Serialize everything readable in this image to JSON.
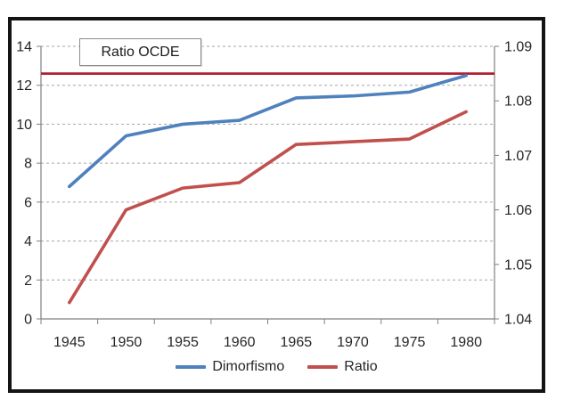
{
  "annotation": {
    "label": "Ratio OCDE"
  },
  "chart_data": {
    "type": "line",
    "title": "",
    "x_labels": [
      "1945",
      "1950",
      "1955",
      "1960",
      "1965",
      "1970",
      "1975",
      "1980"
    ],
    "left_axis": {
      "min": 0,
      "max": 14,
      "step": 2,
      "tick_labels": [
        "0",
        "2",
        "4",
        "6",
        "8",
        "10",
        "12",
        "14"
      ]
    },
    "right_axis": {
      "min": 1.04,
      "max": 1.09,
      "step": 0.01,
      "tick_labels": [
        "1.04",
        "1.05",
        "1.06",
        "1.07",
        "1.08",
        "1.09"
      ]
    },
    "series": [
      {
        "name": "Dimorfismo",
        "axis": "left",
        "color": "#4F81BD",
        "values": [
          6.8,
          9.4,
          10.0,
          10.2,
          11.35,
          11.45,
          11.65,
          12.5
        ]
      },
      {
        "name": "Ratio",
        "axis": "right",
        "color": "#C0504D",
        "values": [
          1.043,
          1.06,
          1.064,
          1.065,
          1.072,
          1.0725,
          1.073,
          1.078
        ]
      }
    ],
    "reference_line": {
      "label": "Ratio OCDE",
      "axis": "right",
      "value": 1.085,
      "color": "#B02030"
    },
    "legend": {
      "position": "bottom",
      "entries": [
        "Dimorfismo",
        "Ratio"
      ]
    },
    "grid": "dashed-horizontal",
    "grid_color": "#a6a6a6",
    "axis_color": "#808080"
  }
}
